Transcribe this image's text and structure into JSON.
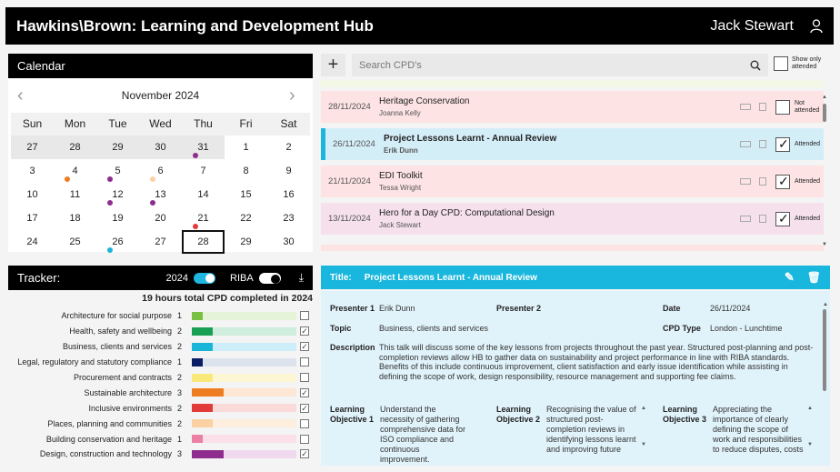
{
  "header": {
    "title": "Hawkins\\Brown: Learning and Development Hub",
    "user_name": "Jack Stewart"
  },
  "calendar": {
    "heading": "Calendar",
    "month_label": "November 2024",
    "weekdays": [
      "Sun",
      "Mon",
      "Tue",
      "Wed",
      "Thu",
      "Fri",
      "Sat"
    ],
    "weeks": [
      [
        "27",
        "28",
        "29",
        "30",
        "31",
        "1",
        "2"
      ],
      [
        "3",
        "4",
        "5",
        "6",
        "7",
        "8",
        "9"
      ],
      [
        "10",
        "11",
        "12",
        "13",
        "14",
        "15",
        "16"
      ],
      [
        "17",
        "18",
        "19",
        "20",
        "21",
        "22",
        "23"
      ],
      [
        "24",
        "25",
        "26",
        "27",
        "28",
        "29",
        "30"
      ]
    ],
    "selected": "28"
  },
  "search": {
    "placeholder": "Search CPD's",
    "show_only_label": "Show only attended"
  },
  "cpd_list": [
    {
      "date": "28/11/2024",
      "title": "Heritage Conservation",
      "presenter": "Joanna Kelly",
      "status": "Not attended",
      "color": "#fde3e3",
      "checked": false
    },
    {
      "date": "26/11/2024",
      "title": "Project Lessons Learnt - Annual Review",
      "presenter": "Erik Dunn",
      "status": "Attended",
      "color": "#d4eef8",
      "checked": true
    },
    {
      "date": "21/11/2024",
      "title": "EDI Toolkit",
      "presenter": "Tessa Wright",
      "status": "Attended",
      "color": "#fde3e3",
      "checked": true
    },
    {
      "date": "13/11/2024",
      "title": "Hero for a Day CPD: Computational Design",
      "presenter": "Jack Stewart",
      "status": "Attended",
      "color": "#f5e0ec",
      "checked": true
    }
  ],
  "tracker": {
    "heading": "Tracker:",
    "year_label": "2024",
    "riba_label": "RIBA",
    "total": "19 hours total CPD completed in 2024",
    "rows": [
      {
        "label": "Architecture for social purpose",
        "hours": "1",
        "frac": 0.1,
        "color": "#7ac143",
        "bg": "#e5f3d9",
        "checked": false
      },
      {
        "label": "Health, safety and wellbeing",
        "hours": "2",
        "frac": 0.2,
        "color": "#1aa053",
        "bg": "#cfeedd",
        "checked": true
      },
      {
        "label": "Business, clients and services",
        "hours": "2",
        "frac": 0.2,
        "color": "#1ab4d9",
        "bg": "#cdeef8",
        "checked": true
      },
      {
        "label": "Legal, regulatory and statutory compliance",
        "hours": "1",
        "frac": 0.1,
        "color": "#0c1e63",
        "bg": "#dde3ec",
        "checked": false
      },
      {
        "label": "Procurement and contracts",
        "hours": "2",
        "frac": 0.2,
        "color": "#f9e97a",
        "bg": "#fcf6d2",
        "checked": false
      },
      {
        "label": "Sustainable architecture",
        "hours": "3",
        "frac": 0.3,
        "color": "#ee7d22",
        "bg": "#fde6d3",
        "checked": true
      },
      {
        "label": "Inclusive environments",
        "hours": "2",
        "frac": 0.2,
        "color": "#e23b3b",
        "bg": "#fbdada",
        "checked": true
      },
      {
        "label": "Places, planning and communities",
        "hours": "2",
        "frac": 0.2,
        "color": "#fbd1a3",
        "bg": "#fdeedd",
        "checked": false
      },
      {
        "label": "Building conservation and heritage",
        "hours": "1",
        "frac": 0.1,
        "color": "#ec7fa5",
        "bg": "#fbe0ea",
        "checked": false
      },
      {
        "label": "Design, construction and technology",
        "hours": "3",
        "frac": 0.3,
        "color": "#8e2d8e",
        "bg": "#f0d9ee",
        "checked": true
      }
    ]
  },
  "detail": {
    "title_label": "Title:",
    "title": "Project Lessons Learnt - Annual Review",
    "presenter1_label": "Presenter 1",
    "presenter1": "Erik Dunn",
    "presenter2_label": "Presenter 2",
    "presenter2": "",
    "date_label": "Date",
    "date": "26/11/2024",
    "topic_label": "Topic",
    "topic": "Business, clients and services",
    "cpd_type_label": "CPD Type",
    "cpd_type": "London - Lunchtime",
    "description_label": "Description",
    "description": "This talk will discuss some of the key lessons from projects throughout the past year. Structured post-planning and post-completion reviews allow HB to gather data on sustainability and project performance in line with RIBA standards. Benefits of this include continuous improvement, client satisfaction and early issue identification while assisting in defining the scope of work, design responsibility, resource management and supporting fee claims.",
    "lo1_label": "Learning Objective 1",
    "lo1": "Understand the necessity of gathering comprehensive data for ISO compliance and continuous improvement.",
    "lo2_label": "Learning Objective 2",
    "lo2": "Recognising the value of structured post-completion reviews in identifying lessons learnt and improving future",
    "lo3_label": "Learning Objective 3",
    "lo3": "Appreciating the importance of clearly defining the scope of work and responsibilities to reduce disputes, costs"
  }
}
